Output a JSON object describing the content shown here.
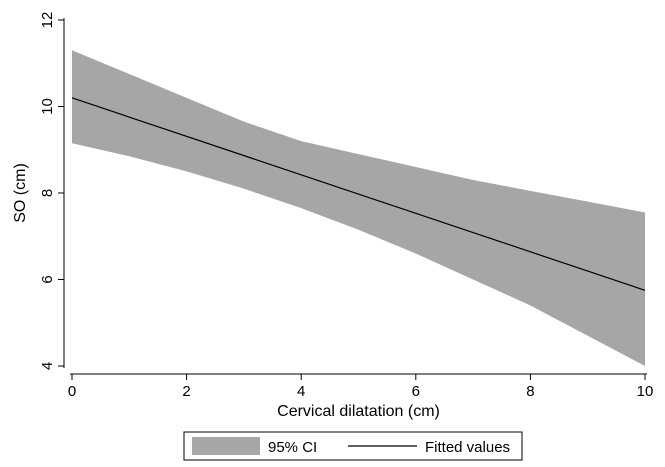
{
  "colors": {
    "band": "#a6a6a6",
    "line": "#000000",
    "axis": "#000000",
    "background": "#ffffff"
  },
  "chart_data": {
    "type": "line",
    "title": "",
    "xlabel": "Cervical dilatation (cm)",
    "ylabel": "SO (cm)",
    "xlim": [
      0,
      10
    ],
    "ylim": [
      4,
      12
    ],
    "xticks": [
      0,
      2,
      4,
      6,
      8,
      10
    ],
    "yticks": [
      4,
      6,
      8,
      10,
      12
    ],
    "grid": false,
    "legend_position": "bottom",
    "series": [
      {
        "name": "95% CI",
        "kind": "band",
        "x": [
          0,
          1,
          2,
          3,
          4,
          5,
          6,
          7,
          8,
          9,
          10
        ],
        "lower": [
          9.15,
          8.85,
          8.5,
          8.1,
          7.65,
          7.15,
          6.6,
          6.0,
          5.4,
          4.7,
          4.0
        ],
        "upper": [
          11.3,
          10.75,
          10.2,
          9.65,
          9.2,
          8.9,
          8.6,
          8.3,
          8.05,
          7.8,
          7.55
        ]
      },
      {
        "name": "Fitted values",
        "kind": "line",
        "x": [
          0,
          10
        ],
        "y": [
          10.2,
          5.75
        ]
      }
    ]
  }
}
